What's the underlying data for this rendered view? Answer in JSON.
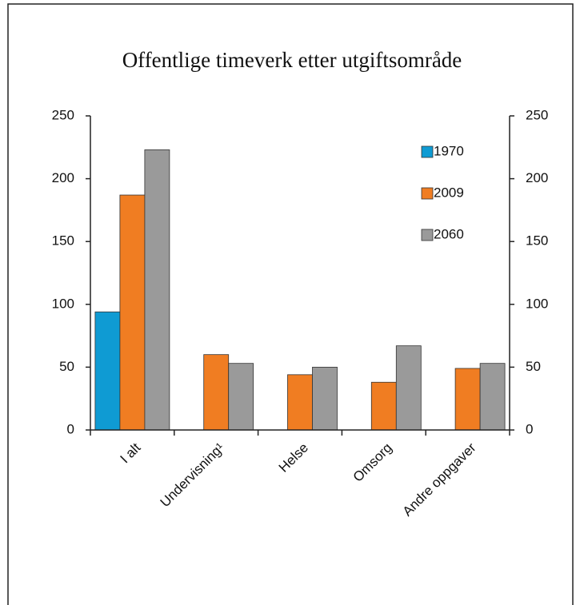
{
  "chart_data": {
    "type": "bar",
    "title": "Offentlige timeverk etter utgiftsområde",
    "categories": [
      "I alt",
      "Undervisning¹",
      "Helse",
      "Omsorg",
      "Andre oppgaver"
    ],
    "series": [
      {
        "name": "1970",
        "color": "#0f9bd3",
        "values": [
          94,
          null,
          null,
          null,
          null
        ]
      },
      {
        "name": "2009",
        "color": "#f07d22",
        "values": [
          187,
          60,
          44,
          38,
          49
        ]
      },
      {
        "name": "2060",
        "color": "#9a9a9a",
        "values": [
          223,
          53,
          50,
          67,
          53
        ]
      }
    ],
    "ylim": [
      0,
      250
    ],
    "yticks": [
      0,
      50,
      100,
      150,
      200,
      250
    ],
    "y2lim": [
      0,
      250
    ],
    "y2ticks": [
      0,
      50,
      100,
      150,
      200,
      250
    ],
    "legend": "top-right"
  }
}
